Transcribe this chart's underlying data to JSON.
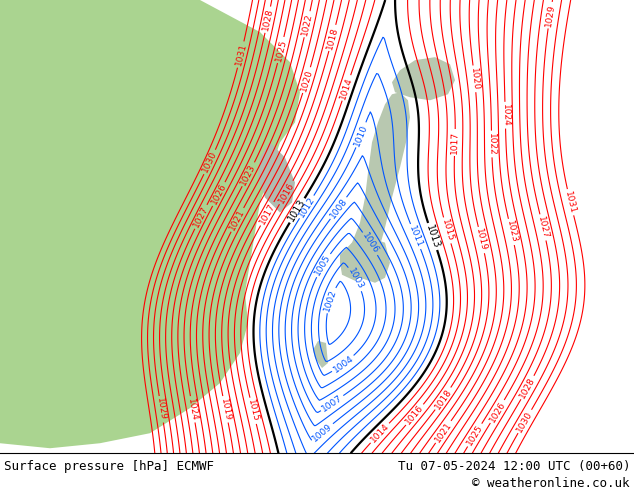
{
  "title_left": "Surface pressure [hPa] ECMWF",
  "title_right": "Tu 07-05-2024 12:00 UTC (00+60)",
  "copyright": "© weatheronline.co.uk",
  "sea_color": "#c8c8c8",
  "land_color_green": "#aad490",
  "land_color_gray": "#b8c8b0",
  "footer_bg": "#ffffff",
  "contour_color_red": "#ff0000",
  "contour_color_blue": "#0055ff",
  "contour_color_black": "#000000",
  "figsize": [
    6.34,
    4.9
  ],
  "dpi": 100
}
